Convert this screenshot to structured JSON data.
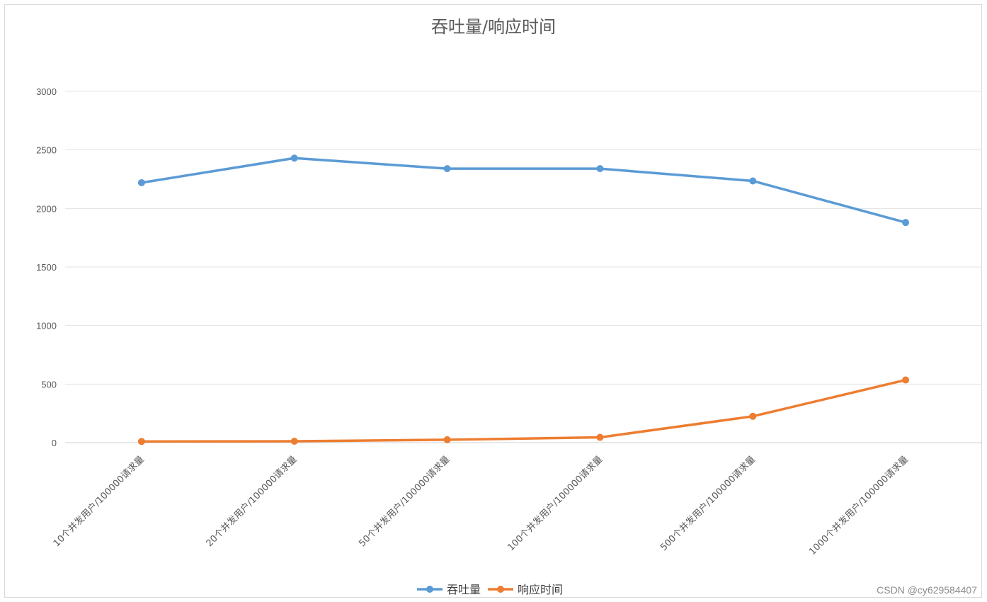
{
  "watermark": "CSDN @cy629584407",
  "chart_data": {
    "type": "line",
    "title": "吞吐量/响应时间",
    "xlabel": "",
    "ylabel": "",
    "ylim": [
      0,
      3000
    ],
    "yticks": [
      0,
      500,
      1000,
      1500,
      2000,
      2500,
      3000
    ],
    "grid": true,
    "legend_position": "bottom",
    "categories": [
      "10个并发用户/100000请求量",
      "20个并发用户/100000请求量",
      "50个并发用户/100000请求量",
      "100个并发用户/100000请求量",
      "500个并发用户/100000请求量",
      "1000个并发用户/100000请求量"
    ],
    "series": [
      {
        "name": "吞吐量",
        "color": "#5b9bd5",
        "values": [
          2220,
          2430,
          2340,
          2340,
          2235,
          1880
        ]
      },
      {
        "name": "响应时间",
        "color": "#ed7d31",
        "values": [
          10,
          12,
          25,
          45,
          225,
          535
        ]
      }
    ]
  }
}
